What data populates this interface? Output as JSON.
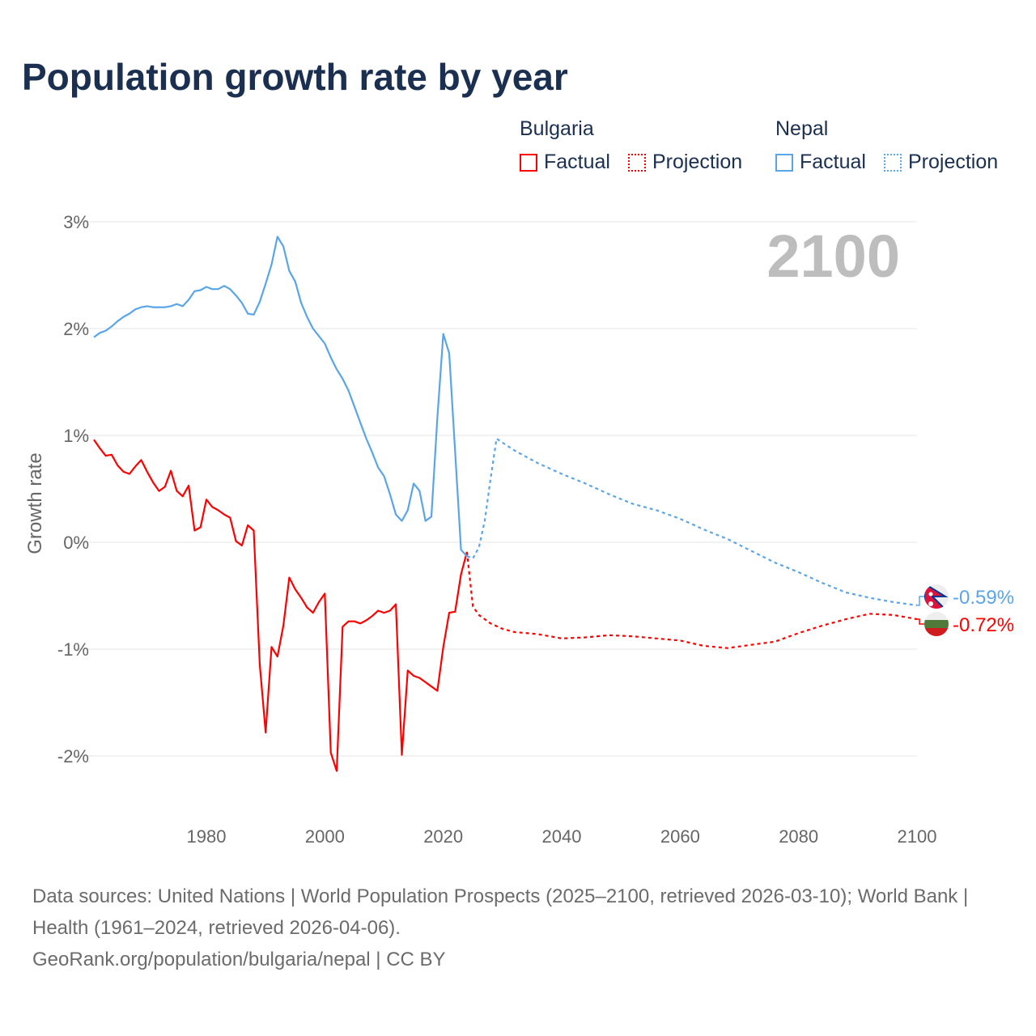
{
  "title": "Population growth rate by year",
  "legend": {
    "groups": [
      {
        "name": "Bulgaria",
        "color": "#ff0000",
        "items": [
          "Factual",
          "Projection"
        ]
      },
      {
        "name": "Nepal",
        "color": "#5aa5e8",
        "items": [
          "Factual",
          "Projection"
        ]
      }
    ]
  },
  "footer": {
    "sources": "Data sources: United Nations | World Population Prospects (2025–2100, retrieved 2026-03-10); World Bank | Health (1961–2024, retrieved 2026-04-06).",
    "credit": "GeoRank.org/population/bulgaria/nepal | CC BY"
  },
  "chart_data": {
    "type": "line",
    "title": "Population growth rate by year",
    "ylabel": "Growth rate",
    "xlabel": "",
    "xlim": [
      1961,
      2100
    ],
    "ylim": [
      -2.5,
      3.0
    ],
    "xticks": [
      1980,
      2000,
      2020,
      2040,
      2060,
      2080,
      2100
    ],
    "yticks": [
      3,
      2,
      1,
      0,
      -1,
      -2
    ],
    "ytick_labels": [
      "3%",
      "2%",
      "1%",
      "0%",
      "-1%",
      "-2%"
    ],
    "grid": true,
    "year_label": "2100",
    "series": [
      {
        "name": "Bulgaria Factual",
        "country": "Bulgaria",
        "kind": "factual",
        "color": "#ff0000",
        "x": [
          1961,
          1962,
          1963,
          1964,
          1965,
          1966,
          1967,
          1968,
          1969,
          1970,
          1971,
          1972,
          1973,
          1974,
          1975,
          1976,
          1977,
          1978,
          1979,
          1980,
          1981,
          1982,
          1983,
          1984,
          1985,
          1986,
          1987,
          1988,
          1989,
          1990,
          1991,
          1992,
          1993,
          1994,
          1995,
          1996,
          1997,
          1998,
          1999,
          2000,
          2001,
          2002,
          2003,
          2004,
          2005,
          2006,
          2007,
          2008,
          2009,
          2010,
          2011,
          2012,
          2013,
          2014,
          2015,
          2016,
          2017,
          2018,
          2019,
          2020,
          2021,
          2022,
          2023,
          2024
        ],
        "y": [
          0.96,
          0.88,
          0.81,
          0.82,
          0.72,
          0.66,
          0.64,
          0.71,
          0.77,
          0.66,
          0.56,
          0.48,
          0.52,
          0.67,
          0.48,
          0.43,
          0.53,
          0.11,
          0.14,
          0.4,
          0.33,
          0.3,
          0.26,
          0.23,
          0.01,
          -0.03,
          0.16,
          0.11,
          -1.14,
          -1.78,
          -0.98,
          -1.07,
          -0.78,
          -0.33,
          -0.44,
          -0.52,
          -0.61,
          -0.66,
          -0.56,
          -0.48,
          -1.97,
          -2.14,
          -0.79,
          -0.74,
          -0.74,
          -0.76,
          -0.73,
          -0.69,
          -0.64,
          -0.66,
          -0.64,
          -0.58,
          -1.99,
          -1.2,
          -1.25,
          -1.27,
          -1.31,
          -1.35,
          -1.39,
          -0.98,
          -0.66,
          -0.65,
          -0.3,
          -0.09
        ]
      },
      {
        "name": "Bulgaria Projection",
        "country": "Bulgaria",
        "kind": "projection",
        "color": "#ff0000",
        "x": [
          2024,
          2025,
          2026,
          2028,
          2030,
          2032,
          2036,
          2040,
          2044,
          2048,
          2052,
          2056,
          2060,
          2064,
          2068,
          2072,
          2076,
          2080,
          2084,
          2088,
          2092,
          2096,
          2100
        ],
        "y": [
          -0.09,
          -0.6,
          -0.68,
          -0.76,
          -0.81,
          -0.84,
          -0.86,
          -0.9,
          -0.89,
          -0.87,
          -0.88,
          -0.9,
          -0.92,
          -0.97,
          -0.99,
          -0.96,
          -0.93,
          -0.85,
          -0.78,
          -0.72,
          -0.67,
          -0.68,
          -0.72
        ]
      },
      {
        "name": "Nepal Factual",
        "country": "Nepal",
        "kind": "factual",
        "color": "#5aa5e8",
        "x": [
          1961,
          1962,
          1963,
          1964,
          1965,
          1966,
          1967,
          1968,
          1969,
          1970,
          1971,
          1972,
          1973,
          1974,
          1975,
          1976,
          1977,
          1978,
          1979,
          1980,
          1981,
          1982,
          1983,
          1984,
          1985,
          1986,
          1987,
          1988,
          1989,
          1990,
          1991,
          1992,
          1993,
          1994,
          1995,
          1996,
          1997,
          1998,
          1999,
          2000,
          2001,
          2002,
          2003,
          2004,
          2005,
          2006,
          2007,
          2008,
          2009,
          2010,
          2011,
          2012,
          2013,
          2014,
          2015,
          2016,
          2017,
          2018,
          2019,
          2020,
          2021,
          2022,
          2023,
          2024
        ],
        "y": [
          1.92,
          1.96,
          1.98,
          2.02,
          2.07,
          2.11,
          2.14,
          2.18,
          2.2,
          2.21,
          2.2,
          2.2,
          2.2,
          2.21,
          2.23,
          2.21,
          2.27,
          2.35,
          2.36,
          2.39,
          2.37,
          2.37,
          2.4,
          2.37,
          2.31,
          2.24,
          2.14,
          2.13,
          2.25,
          2.42,
          2.6,
          2.86,
          2.77,
          2.54,
          2.44,
          2.24,
          2.11,
          2.0,
          1.93,
          1.86,
          1.73,
          1.62,
          1.53,
          1.42,
          1.27,
          1.12,
          0.97,
          0.84,
          0.7,
          0.62,
          0.45,
          0.26,
          0.2,
          0.3,
          0.55,
          0.48,
          0.2,
          0.24,
          1.17,
          1.95,
          1.77,
          0.85,
          -0.07,
          -0.13
        ]
      },
      {
        "name": "Nepal Projection",
        "country": "Nepal",
        "kind": "projection",
        "color": "#5aa5e8",
        "x": [
          2024,
          2025,
          2026,
          2027,
          2028,
          2029,
          2032,
          2036,
          2040,
          2044,
          2048,
          2052,
          2056,
          2060,
          2064,
          2068,
          2072,
          2076,
          2080,
          2084,
          2088,
          2092,
          2096,
          2100
        ],
        "y": [
          -0.13,
          -0.15,
          -0.05,
          0.2,
          0.6,
          0.97,
          0.86,
          0.74,
          0.64,
          0.55,
          0.45,
          0.36,
          0.3,
          0.22,
          0.12,
          0.03,
          -0.08,
          -0.19,
          -0.28,
          -0.38,
          -0.47,
          -0.52,
          -0.56,
          -0.59
        ]
      }
    ],
    "end_labels": [
      {
        "country": "Nepal",
        "value": -0.59,
        "text": "-0.59%",
        "color": "#5aa5e8"
      },
      {
        "country": "Bulgaria",
        "value": -0.72,
        "text": "-0.72%",
        "color": "#ff0000"
      }
    ]
  }
}
